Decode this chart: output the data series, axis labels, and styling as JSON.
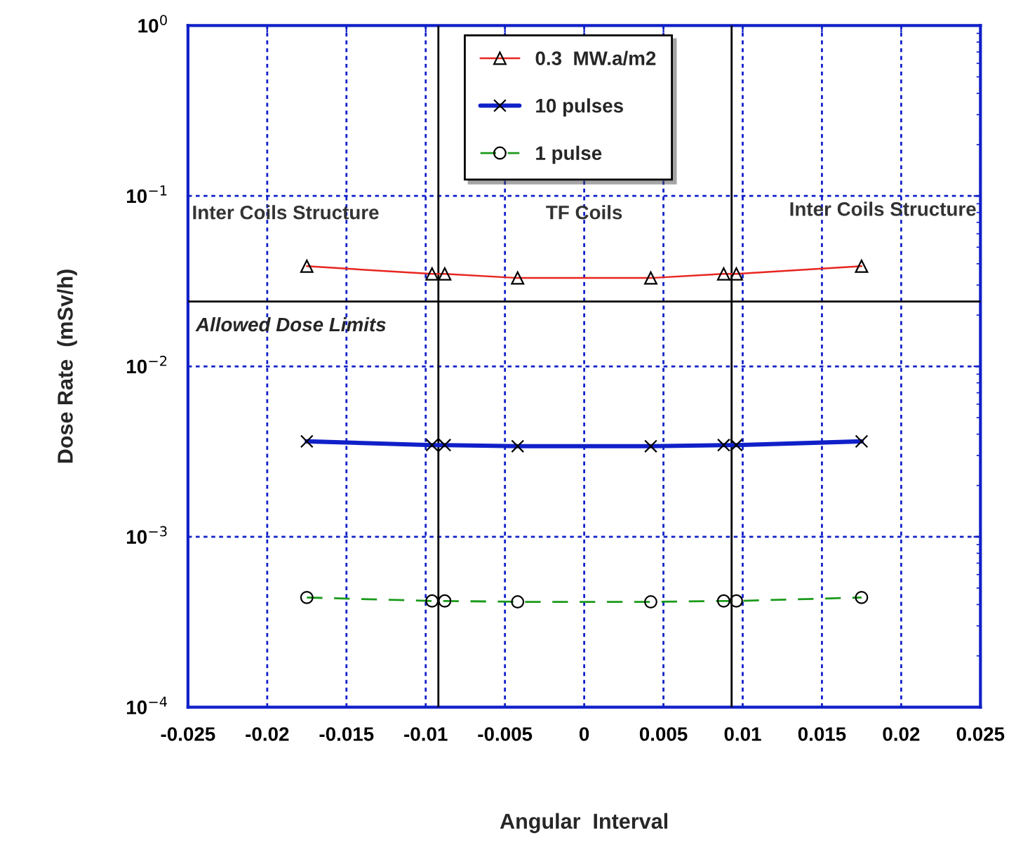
{
  "chart_data": {
    "type": "line",
    "xlabel": "Angular  Interval",
    "ylabel": "Dose Rate  (mSv/h)",
    "log": "y",
    "xlim": [
      -0.025,
      0.025
    ],
    "xticks": [
      -0.025,
      -0.02,
      -0.015,
      -0.01,
      -0.005,
      0,
      0.005,
      0.01,
      0.015,
      0.02,
      0.025
    ],
    "ylim": [
      0.0001,
      1
    ],
    "yticks": [
      {
        "value": 0.0001,
        "label": "10$^{−4}$"
      },
      {
        "value": 0.001,
        "label": "10$^{−3}$"
      },
      {
        "value": 0.01,
        "label": "10$^{−2}$"
      },
      {
        "value": 0.1,
        "label": "10$^{−1}$"
      },
      {
        "value": 1,
        "label": "10$^{0}$"
      }
    ],
    "grid": true,
    "legend": "top",
    "x": [
      -0.0175,
      -0.0096,
      -0.0088,
      -0.0042,
      0.0042,
      0.0088,
      0.0096,
      0.0175
    ],
    "series": [
      {
        "name": "0.3  MW.a/m2",
        "color": "#e8251f",
        "marker": "triangle",
        "line_style": "solid",
        "values": [
          0.0387,
          0.0349,
          0.0349,
          0.033,
          0.033,
          0.0349,
          0.0349,
          0.0387
        ]
      },
      {
        "name": "10 pulses",
        "color": "#1020c8",
        "marker": "cross",
        "line_style": "solid",
        "values": [
          0.00363,
          0.00345,
          0.00345,
          0.0034,
          0.0034,
          0.00345,
          0.00345,
          0.00363
        ]
      },
      {
        "name": "1 pulse",
        "color": "#1a9a1a",
        "marker": "circle",
        "line_style": "dashed",
        "values": [
          0.00044,
          0.00042,
          0.00042,
          0.000415,
          0.000415,
          0.00042,
          0.00042,
          0.00044
        ]
      }
    ],
    "ref_lines": [
      {
        "axis": "x",
        "value": -0.0092,
        "color": "#000000"
      },
      {
        "axis": "x",
        "value": 0.0093,
        "color": "#000000"
      },
      {
        "axis": "y",
        "value": 0.024,
        "color": "#000000",
        "label": "Allowed Dose Limits"
      }
    ],
    "annotations": [
      "Inter Coils Structure",
      "TF Coils",
      "Inter Coils Structure"
    ]
  }
}
